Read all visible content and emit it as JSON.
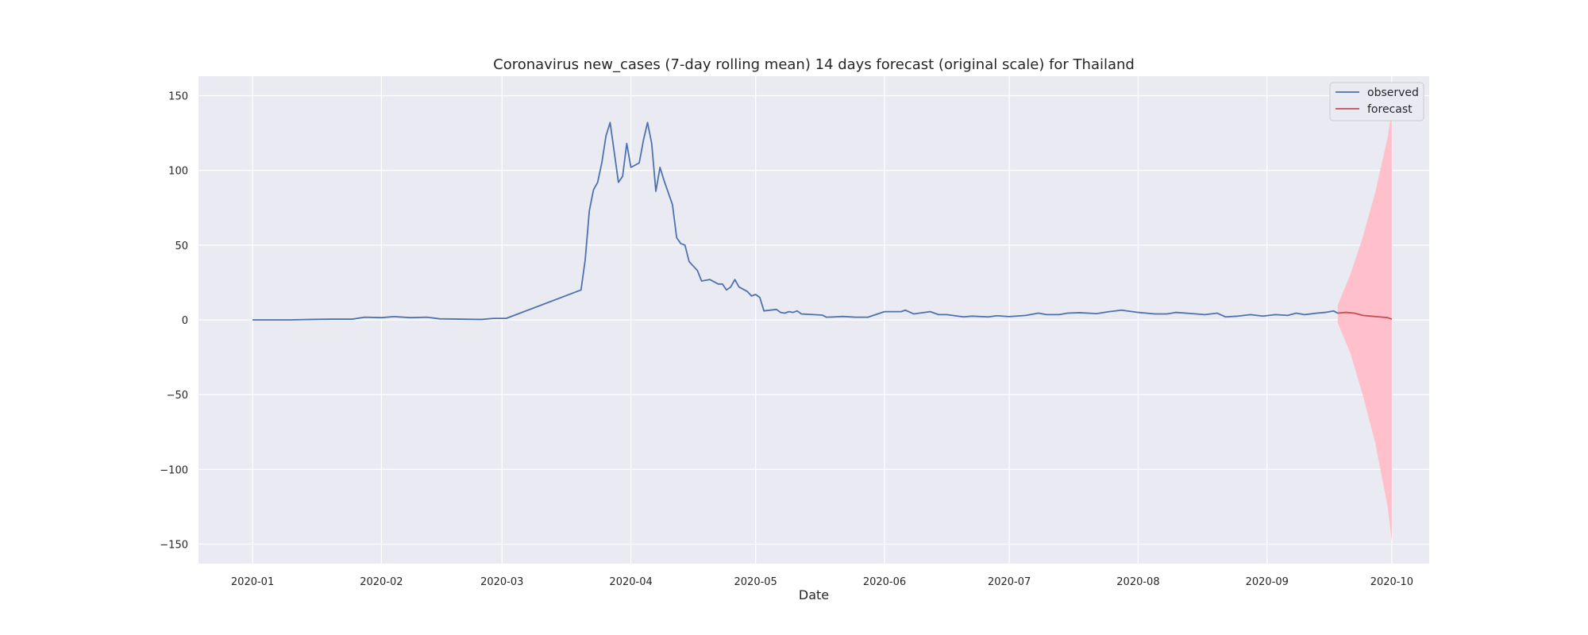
{
  "chart_data": {
    "type": "line",
    "title": "Coronavirus new_cases (7-day rolling mean) 14 days forecast (original scale) for Thailand",
    "xlabel": "Date",
    "ylabel": "",
    "x_range": [
      "2019-12-19",
      "2020-10-10"
    ],
    "ylim": [
      -163,
      163
    ],
    "x_ticks": [
      "2020-01",
      "2020-02",
      "2020-03",
      "2020-04",
      "2020-05",
      "2020-06",
      "2020-07",
      "2020-08",
      "2020-09",
      "2020-10"
    ],
    "y_ticks": [
      -150,
      -100,
      -50,
      0,
      50,
      100,
      150
    ],
    "y_tick_labels": [
      "−150",
      "−100",
      "−50",
      "0",
      "50",
      "100",
      "150"
    ],
    "grid": true,
    "legend_position": "top-right",
    "colors": {
      "plot_background": "#eaeaf2",
      "grid": "#ffffff",
      "observed": "#4c72b0",
      "forecast": "#c44e52",
      "interval": "#ffc0cb"
    },
    "series": [
      {
        "name": "observed",
        "points": [
          [
            "2020-01-01",
            0
          ],
          [
            "2020-01-10",
            0
          ],
          [
            "2020-01-15",
            0.3
          ],
          [
            "2020-01-20",
            0.5
          ],
          [
            "2020-01-25",
            0.5
          ],
          [
            "2020-01-28",
            1.8
          ],
          [
            "2020-02-01",
            1.5
          ],
          [
            "2020-02-04",
            2.2
          ],
          [
            "2020-02-08",
            1.5
          ],
          [
            "2020-02-12",
            1.8
          ],
          [
            "2020-02-15",
            0.7
          ],
          [
            "2020-02-20",
            0.5
          ],
          [
            "2020-02-25",
            0.3
          ],
          [
            "2020-02-28",
            1
          ],
          [
            "2020-03-02",
            1
          ],
          [
            "2020-03-20",
            20
          ],
          [
            "2020-03-21",
            40
          ],
          [
            "2020-03-22",
            73
          ],
          [
            "2020-03-23",
            87
          ],
          [
            "2020-03-24",
            92
          ],
          [
            "2020-03-25",
            105
          ],
          [
            "2020-03-26",
            123
          ],
          [
            "2020-03-27",
            132
          ],
          [
            "2020-03-28",
            112
          ],
          [
            "2020-03-29",
            92
          ],
          [
            "2020-03-30",
            96
          ],
          [
            "2020-03-31",
            118
          ],
          [
            "2020-04-01",
            102
          ],
          [
            "2020-04-03",
            105
          ],
          [
            "2020-04-04",
            120
          ],
          [
            "2020-04-05",
            132
          ],
          [
            "2020-04-06",
            118
          ],
          [
            "2020-04-07",
            86
          ],
          [
            "2020-04-08",
            102
          ],
          [
            "2020-04-09",
            93
          ],
          [
            "2020-04-11",
            77
          ],
          [
            "2020-04-12",
            55
          ],
          [
            "2020-04-13",
            51
          ],
          [
            "2020-04-14",
            50
          ],
          [
            "2020-04-15",
            39
          ],
          [
            "2020-04-16",
            36
          ],
          [
            "2020-04-17",
            33
          ],
          [
            "2020-04-18",
            26
          ],
          [
            "2020-04-20",
            27
          ],
          [
            "2020-04-22",
            24
          ],
          [
            "2020-04-23",
            24
          ],
          [
            "2020-04-24",
            20
          ],
          [
            "2020-04-25",
            22
          ],
          [
            "2020-04-26",
            27
          ],
          [
            "2020-04-27",
            22
          ],
          [
            "2020-04-29",
            19
          ],
          [
            "2020-04-30",
            16
          ],
          [
            "2020-05-01",
            17
          ],
          [
            "2020-05-02",
            15
          ],
          [
            "2020-05-03",
            6
          ],
          [
            "2020-05-06",
            7
          ],
          [
            "2020-05-07",
            5
          ],
          [
            "2020-05-08",
            4.5
          ],
          [
            "2020-05-09",
            5.5
          ],
          [
            "2020-05-10",
            5
          ],
          [
            "2020-05-11",
            6
          ],
          [
            "2020-05-12",
            4
          ],
          [
            "2020-05-15",
            3.5
          ],
          [
            "2020-05-17",
            3.2
          ],
          [
            "2020-05-18",
            1.8
          ],
          [
            "2020-05-20",
            2
          ],
          [
            "2020-05-22",
            2.3
          ],
          [
            "2020-05-25",
            1.8
          ],
          [
            "2020-05-28",
            1.8
          ],
          [
            "2020-06-01",
            5.5
          ],
          [
            "2020-06-05",
            5.5
          ],
          [
            "2020-06-06",
            6.5
          ],
          [
            "2020-06-08",
            4
          ],
          [
            "2020-06-12",
            5.5
          ],
          [
            "2020-06-14",
            3.5
          ],
          [
            "2020-06-16",
            3.5
          ],
          [
            "2020-06-20",
            2
          ],
          [
            "2020-06-22",
            2.5
          ],
          [
            "2020-06-26",
            2
          ],
          [
            "2020-06-28",
            2.8
          ],
          [
            "2020-07-01",
            2.2
          ],
          [
            "2020-07-05",
            3
          ],
          [
            "2020-07-08",
            4.5
          ],
          [
            "2020-07-10",
            3.5
          ],
          [
            "2020-07-13",
            3.5
          ],
          [
            "2020-07-15",
            4.5
          ],
          [
            "2020-07-18",
            4.8
          ],
          [
            "2020-07-22",
            4.2
          ],
          [
            "2020-07-25",
            5.5
          ],
          [
            "2020-07-28",
            6.5
          ],
          [
            "2020-08-01",
            5
          ],
          [
            "2020-08-05",
            4
          ],
          [
            "2020-08-08",
            4
          ],
          [
            "2020-08-10",
            5
          ],
          [
            "2020-08-15",
            4
          ],
          [
            "2020-08-17",
            3.5
          ],
          [
            "2020-08-20",
            4.5
          ],
          [
            "2020-08-22",
            2
          ],
          [
            "2020-08-25",
            2.5
          ],
          [
            "2020-08-28",
            3.5
          ],
          [
            "2020-08-31",
            2.5
          ],
          [
            "2020-09-03",
            3.5
          ],
          [
            "2020-09-06",
            3
          ],
          [
            "2020-09-08",
            4.5
          ],
          [
            "2020-09-10",
            3.5
          ],
          [
            "2020-09-13",
            4.5
          ],
          [
            "2020-09-15",
            5
          ],
          [
            "2020-09-17",
            6
          ],
          [
            "2020-09-18",
            4.5
          ]
        ]
      },
      {
        "name": "forecast",
        "points": [
          [
            "2020-09-18",
            4.5
          ],
          [
            "2020-09-20",
            5
          ],
          [
            "2020-09-22",
            4.5
          ],
          [
            "2020-09-24",
            3
          ],
          [
            "2020-09-26",
            2.5
          ],
          [
            "2020-09-28",
            2
          ],
          [
            "2020-09-30",
            1.5
          ],
          [
            "2020-10-01",
            0.5
          ]
        ]
      }
    ],
    "forecast_interval": {
      "x": [
        "2020-09-18",
        "2020-09-21",
        "2020-09-24",
        "2020-09-27",
        "2020-09-30",
        "2020-10-01"
      ],
      "upper": [
        10,
        30,
        55,
        85,
        122,
        140
      ],
      "lower": [
        -2,
        -22,
        -50,
        -82,
        -125,
        -148
      ]
    }
  }
}
